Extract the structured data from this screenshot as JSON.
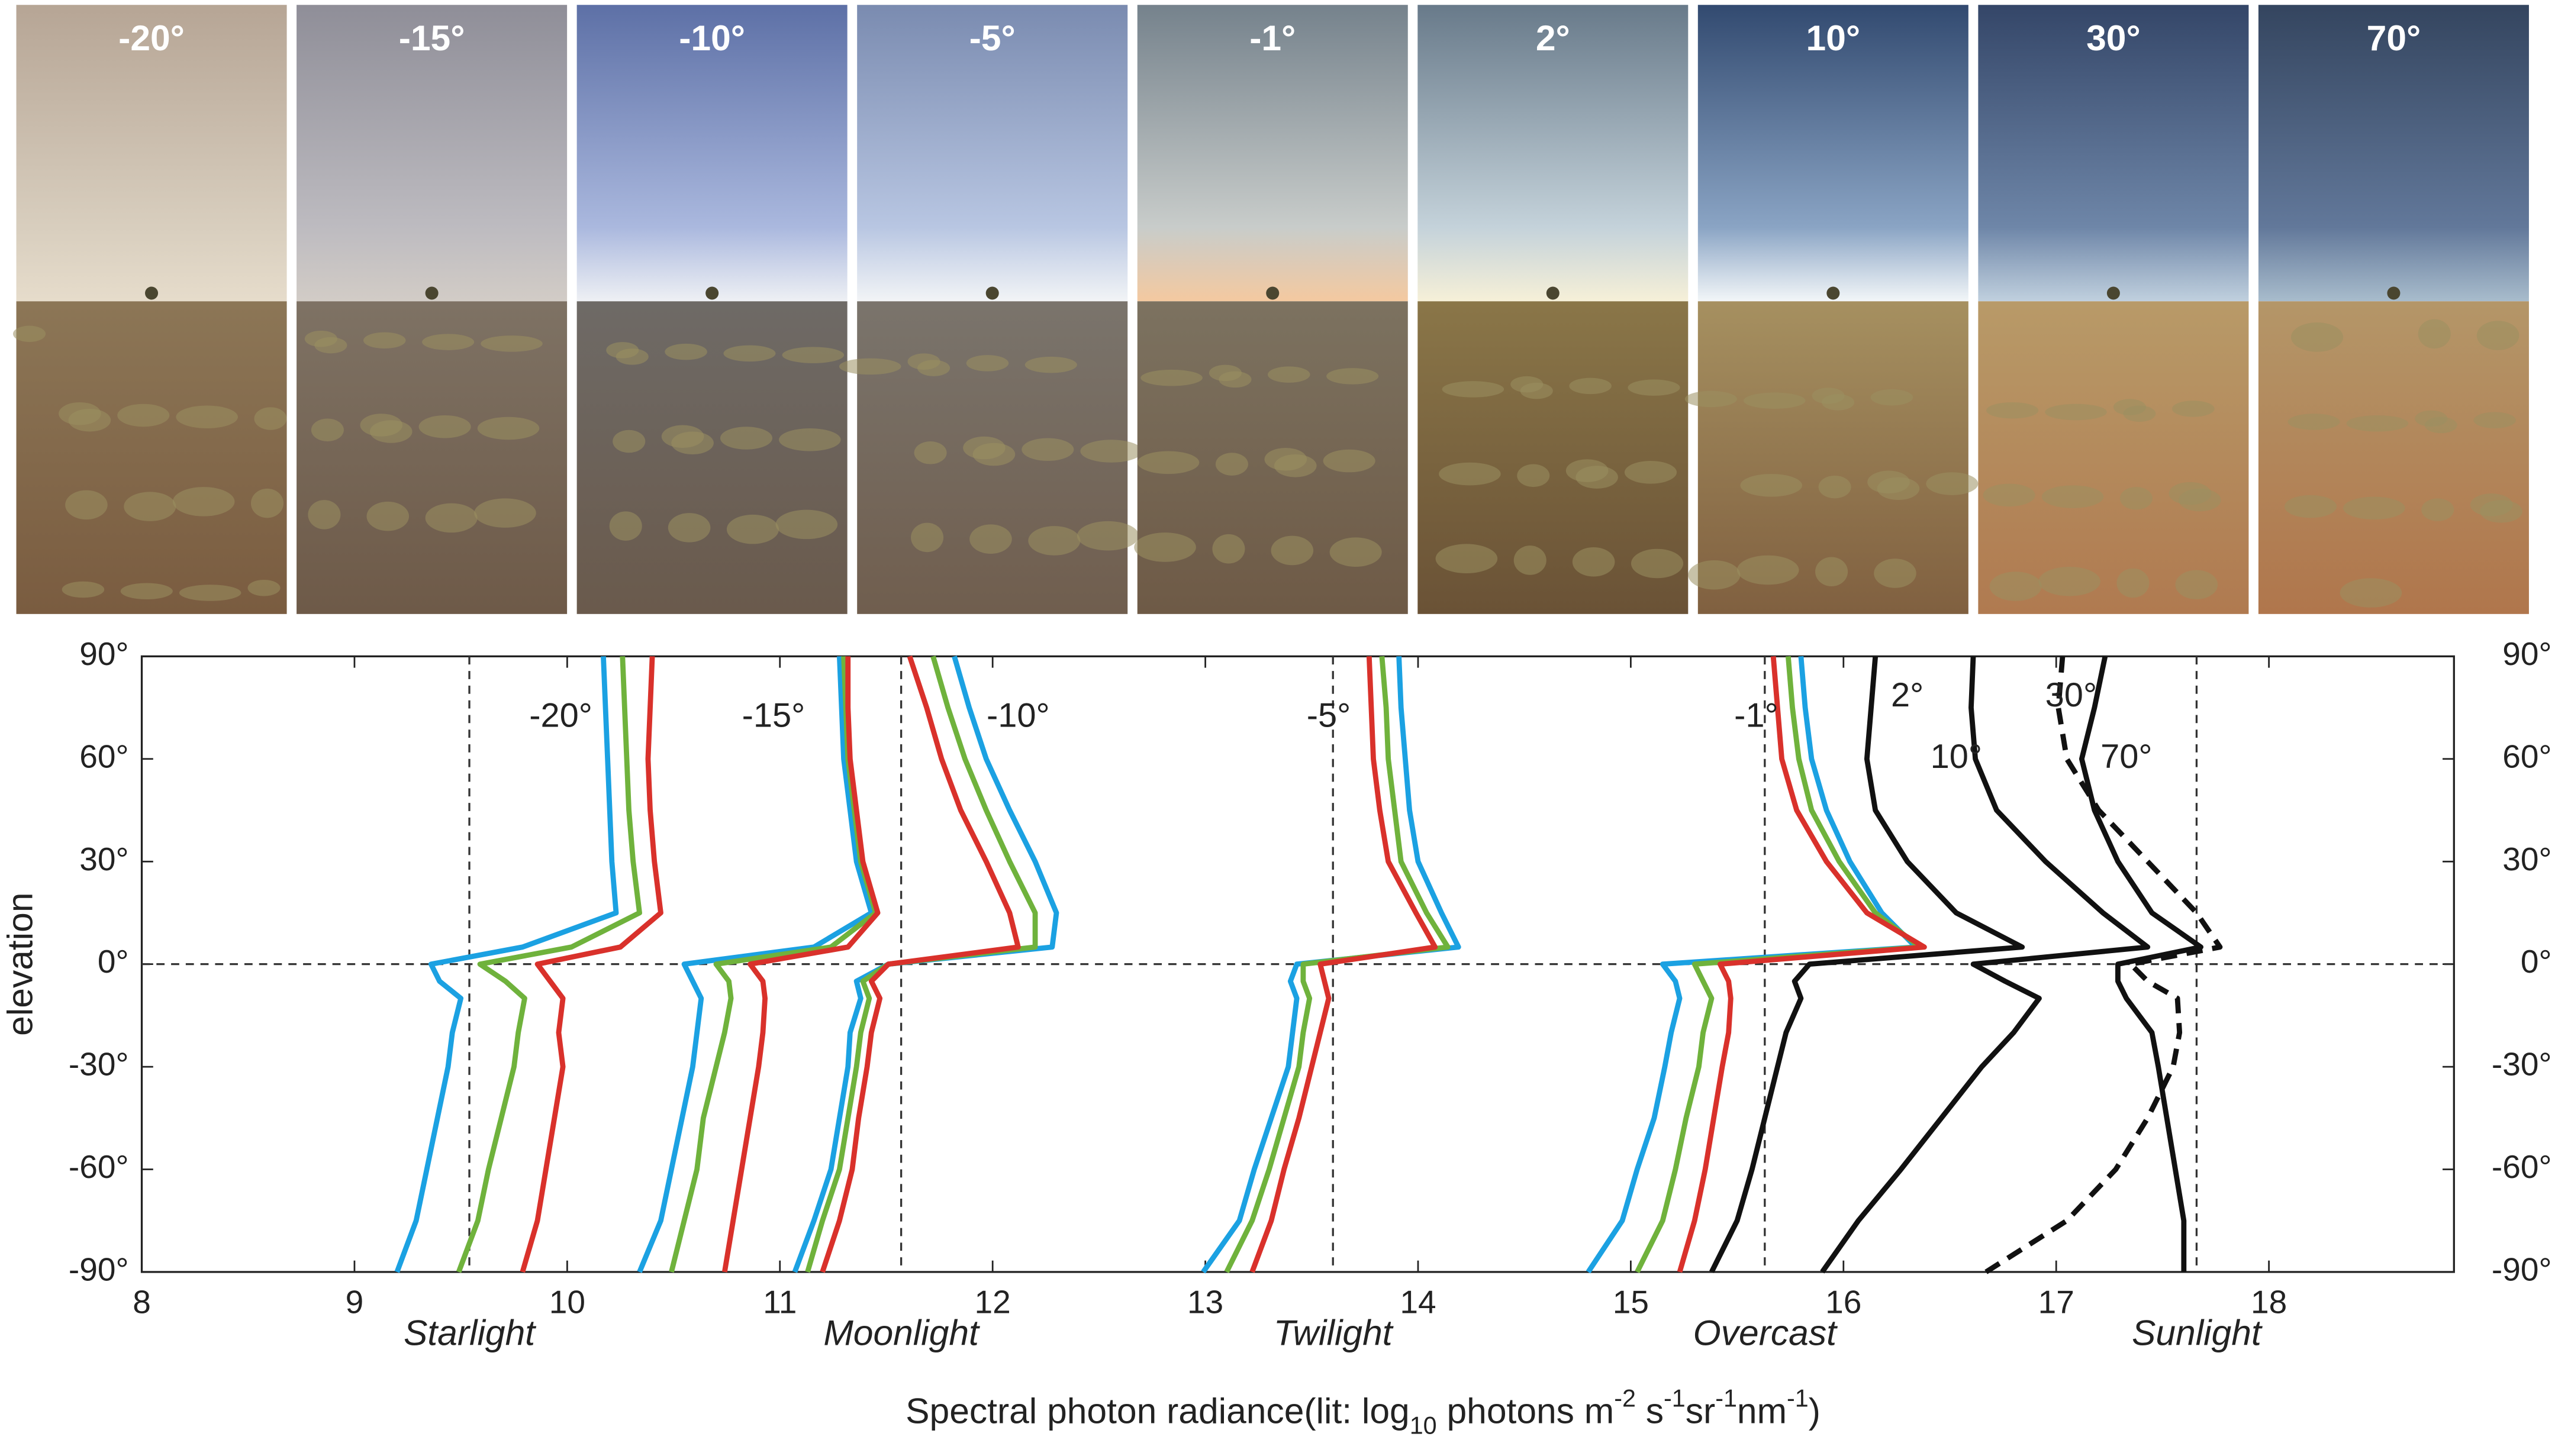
{
  "photos": [
    {
      "label": "-20°"
    },
    {
      "label": "-15°"
    },
    {
      "label": "-10°"
    },
    {
      "label": "-5°"
    },
    {
      "label": "-1°"
    },
    {
      "label": "2°"
    },
    {
      "label": "10°"
    },
    {
      "label": "30°"
    },
    {
      "label": "70°"
    }
  ],
  "chart_data": {
    "type": "line",
    "xlabel_parts": [
      {
        "text": "Spectral photon radiance(lit: log"
      },
      {
        "text": "10",
        "shift": "sub"
      },
      {
        "text": " photons m"
      },
      {
        "text": "-2",
        "shift": "sup"
      },
      {
        "text": " s"
      },
      {
        "text": "-1",
        "shift": "sup"
      },
      {
        "text": "sr"
      },
      {
        "text": "-1",
        "shift": "sup"
      },
      {
        "text": "nm"
      },
      {
        "text": "-1",
        "shift": "sup"
      },
      {
        "text": ")"
      }
    ],
    "ylabel": "elevation",
    "xlim": [
      8,
      18.87
    ],
    "ylim": [
      -90,
      90
    ],
    "xticks": [
      8,
      9,
      10,
      11,
      12,
      13,
      14,
      15,
      16,
      17,
      18
    ],
    "yticks": [
      {
        "value": -90,
        "label": "-90°"
      },
      {
        "value": -60,
        "label": "-60°"
      },
      {
        "value": -30,
        "label": "-30°"
      },
      {
        "value": 0,
        "label": "0°"
      },
      {
        "value": 30,
        "label": "30°"
      },
      {
        "value": 60,
        "label": "60°"
      },
      {
        "value": 90,
        "label": "90°"
      }
    ],
    "right_yticks": true,
    "hline": 0,
    "regions": [
      {
        "label": "Starlight",
        "x": 9.54
      },
      {
        "label": "Moonlight",
        "x": 11.57
      },
      {
        "label": "Twilight",
        "x": 13.6
      },
      {
        "label": "Overcast",
        "x": 15.63
      },
      {
        "label": "Sunlight",
        "x": 17.66
      }
    ],
    "annotations": [
      {
        "text": "-20°",
        "x": 9.97,
        "y": 72
      },
      {
        "text": "-15°",
        "x": 10.97,
        "y": 72
      },
      {
        "text": "-10°",
        "x": 12.12,
        "y": 72
      },
      {
        "text": "-5°",
        "x": 13.58,
        "y": 72
      },
      {
        "text": "-1°",
        "x": 15.59,
        "y": 72
      },
      {
        "text": "2°",
        "x": 16.3,
        "y": 78
      },
      {
        "text": "10°",
        "x": 16.53,
        "y": 60
      },
      {
        "text": "30°",
        "x": 17.07,
        "y": 78
      },
      {
        "text": "70°",
        "x": 17.33,
        "y": 60
      }
    ],
    "y": [
      90,
      75,
      60,
      45,
      30,
      15,
      5,
      0,
      -5,
      -10,
      -20,
      -30,
      -45,
      -60,
      -75,
      -90
    ],
    "series": [
      {
        "color": "#1ba1e2",
        "dash": false,
        "values": [
          10.17,
          10.18,
          10.19,
          10.2,
          10.21,
          10.23,
          9.79,
          9.36,
          9.4,
          9.5,
          9.46,
          9.44,
          9.39,
          9.34,
          9.29,
          9.2
        ]
      },
      {
        "color": "#6fb23c",
        "dash": false,
        "values": [
          10.26,
          10.27,
          10.28,
          10.29,
          10.31,
          10.34,
          10.02,
          9.59,
          9.71,
          9.8,
          9.77,
          9.75,
          9.69,
          9.63,
          9.58,
          9.49
        ]
      },
      {
        "color": "#d9312b",
        "dash": false,
        "values": [
          10.4,
          10.39,
          10.38,
          10.39,
          10.41,
          10.44,
          10.25,
          9.86,
          9.92,
          9.98,
          9.96,
          9.98,
          9.94,
          9.9,
          9.86,
          9.79
        ]
      },
      {
        "color": "#1ba1e2",
        "dash": false,
        "values": [
          11.28,
          11.29,
          11.3,
          11.33,
          11.36,
          11.43,
          11.16,
          10.55,
          10.59,
          10.63,
          10.61,
          10.59,
          10.54,
          10.49,
          10.44,
          10.34
        ]
      },
      {
        "color": "#6fb23c",
        "dash": false,
        "values": [
          11.3,
          11.31,
          11.32,
          11.35,
          11.38,
          11.45,
          11.24,
          10.7,
          10.76,
          10.77,
          10.74,
          10.7,
          10.64,
          10.61,
          10.55,
          10.49
        ]
      },
      {
        "color": "#d9312b",
        "dash": false,
        "values": [
          11.32,
          11.32,
          11.33,
          11.36,
          11.39,
          11.46,
          11.32,
          10.86,
          10.92,
          10.93,
          10.92,
          10.9,
          10.86,
          10.82,
          10.78,
          10.74
        ]
      },
      {
        "color": "#1ba1e2",
        "dash": false,
        "values": [
          11.82,
          11.89,
          11.97,
          12.08,
          12.2,
          12.3,
          12.28,
          11.51,
          11.36,
          11.38,
          11.33,
          11.32,
          11.28,
          11.24,
          11.16,
          11.07
        ]
      },
      {
        "color": "#6fb23c",
        "dash": false,
        "values": [
          11.72,
          11.79,
          11.87,
          11.97,
          12.08,
          12.2,
          12.2,
          11.51,
          11.39,
          11.42,
          11.38,
          11.36,
          11.32,
          11.28,
          11.2,
          11.13
        ]
      },
      {
        "color": "#d9312b",
        "dash": false,
        "values": [
          11.61,
          11.69,
          11.76,
          11.85,
          11.97,
          12.08,
          12.12,
          11.51,
          11.43,
          11.47,
          11.43,
          11.41,
          11.37,
          11.34,
          11.28,
          11.2
        ]
      },
      {
        "color": "#1ba1e2",
        "dash": false,
        "values": [
          13.91,
          13.92,
          13.94,
          13.96,
          14.0,
          14.11,
          14.19,
          13.43,
          13.4,
          13.43,
          13.41,
          13.39,
          13.31,
          13.23,
          13.16,
          12.99
        ]
      },
      {
        "color": "#6fb23c",
        "dash": false,
        "values": [
          13.83,
          13.85,
          13.86,
          13.89,
          13.92,
          14.04,
          14.14,
          13.46,
          13.46,
          13.49,
          13.46,
          13.44,
          13.37,
          13.3,
          13.22,
          13.1
        ]
      },
      {
        "color": "#d9312b",
        "dash": false,
        "values": [
          13.77,
          13.78,
          13.79,
          13.82,
          13.86,
          13.99,
          14.08,
          13.54,
          13.56,
          13.58,
          13.54,
          13.5,
          13.44,
          13.37,
          13.31,
          13.22
        ]
      },
      {
        "color": "#1ba1e2",
        "dash": false,
        "values": [
          15.8,
          15.82,
          15.85,
          15.92,
          16.03,
          16.18,
          16.34,
          15.15,
          15.21,
          15.23,
          15.19,
          15.16,
          15.11,
          15.03,
          14.96,
          14.8
        ]
      },
      {
        "color": "#6fb23c",
        "dash": false,
        "values": [
          15.74,
          15.76,
          15.79,
          15.85,
          15.98,
          16.15,
          16.36,
          15.3,
          15.34,
          15.38,
          15.34,
          15.32,
          15.26,
          15.21,
          15.15,
          15.03
        ]
      },
      {
        "color": "#d9312b",
        "dash": false,
        "values": [
          15.67,
          15.69,
          15.71,
          15.78,
          15.92,
          16.11,
          16.38,
          15.42,
          15.46,
          15.47,
          15.46,
          15.43,
          15.39,
          15.35,
          15.3,
          15.23
        ]
      },
      {
        "color": "#111111",
        "dash": false,
        "values": [
          16.15,
          16.13,
          16.11,
          16.15,
          16.3,
          16.53,
          16.84,
          15.84,
          15.77,
          15.8,
          15.73,
          15.69,
          15.63,
          15.57,
          15.5,
          15.38
        ]
      },
      {
        "color": "#111111",
        "dash": false,
        "values": [
          16.61,
          16.6,
          16.62,
          16.72,
          16.95,
          17.22,
          17.43,
          16.61,
          16.76,
          16.92,
          16.8,
          16.65,
          16.46,
          16.27,
          16.07,
          15.9
        ]
      },
      {
        "color": "#111111",
        "dash": true,
        "values": [
          17.03,
          17.01,
          17.05,
          17.2,
          17.43,
          17.66,
          17.77,
          17.35,
          17.43,
          17.57,
          17.58,
          17.55,
          17.43,
          17.28,
          17.05,
          16.67
        ]
      },
      {
        "color": "#111111",
        "dash": false,
        "values": [
          17.23,
          17.18,
          17.12,
          17.18,
          17.29,
          17.45,
          17.68,
          17.29,
          17.29,
          17.33,
          17.45,
          17.48,
          17.52,
          17.56,
          17.6,
          17.6
        ]
      }
    ]
  }
}
